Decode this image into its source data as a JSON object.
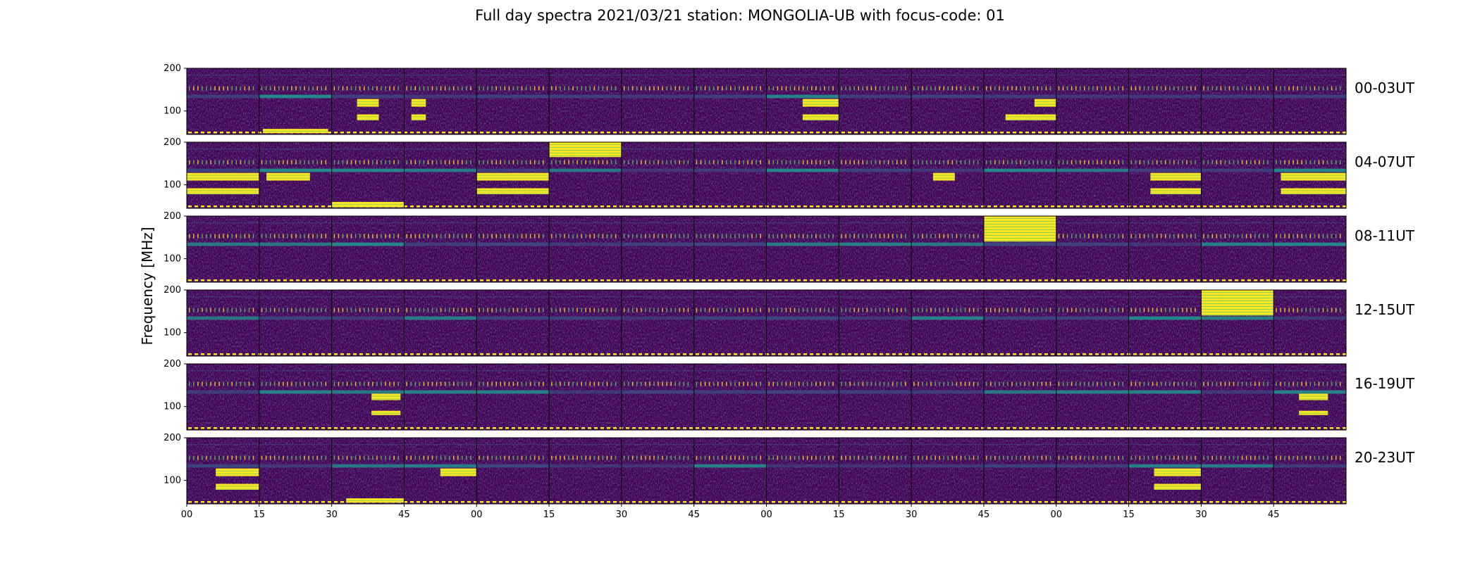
{
  "chart_data": {
    "type": "heatmap",
    "title": "Full day spectra 2021/03/21 station: MONGOLIA-UB with focus-code: 01",
    "ylabel": "Frequency [MHz]",
    "ylim": [
      45,
      200
    ],
    "y_ticks": [
      100,
      200
    ],
    "x_tick_labels": [
      "00",
      "15",
      "30",
      "45",
      "00",
      "15",
      "30",
      "45",
      "00",
      "15",
      "30",
      "45",
      "00",
      "15",
      "30",
      "45"
    ],
    "grid": false,
    "colormap": "viridis",
    "colormap_stops": [
      "#440154",
      "#3b528b",
      "#21918c",
      "#5ec962",
      "#fde725"
    ],
    "panels_per_row": 16,
    "minutes_per_panel": 15,
    "rows": [
      {
        "label": "00-03UT",
        "events": [
          {
            "panel": 2,
            "from": 0.05,
            "to": 0.95,
            "fmin": 48,
            "fmax": 58
          },
          {
            "panel": 3,
            "from": 0.35,
            "to": 0.65,
            "fmin": 110,
            "fmax": 128
          },
          {
            "panel": 3,
            "from": 0.35,
            "to": 0.65,
            "fmin": 78,
            "fmax": 92
          },
          {
            "panel": 4,
            "from": 0.1,
            "to": 0.3,
            "fmin": 110,
            "fmax": 128
          },
          {
            "panel": 4,
            "from": 0.1,
            "to": 0.3,
            "fmin": 78,
            "fmax": 92
          },
          {
            "panel": 9,
            "from": 0.5,
            "to": 1.0,
            "fmin": 110,
            "fmax": 128
          },
          {
            "panel": 9,
            "from": 0.5,
            "to": 1.0,
            "fmin": 78,
            "fmax": 92
          },
          {
            "panel": 12,
            "from": 0.7,
            "to": 1.0,
            "fmin": 110,
            "fmax": 128
          },
          {
            "panel": 12,
            "from": 0.3,
            "to": 1.0,
            "fmin": 78,
            "fmax": 92
          }
        ]
      },
      {
        "label": "04-07UT",
        "events": [
          {
            "panel": 1,
            "from": 0.0,
            "to": 1.0,
            "fmin": 110,
            "fmax": 128
          },
          {
            "panel": 1,
            "from": 0.0,
            "to": 1.0,
            "fmin": 78,
            "fmax": 92
          },
          {
            "panel": 2,
            "from": 0.1,
            "to": 0.7,
            "fmin": 110,
            "fmax": 128
          },
          {
            "panel": 3,
            "from": 0.0,
            "to": 1.0,
            "fmin": 48,
            "fmax": 60
          },
          {
            "panel": 5,
            "from": 0.0,
            "to": 1.0,
            "fmin": 110,
            "fmax": 128
          },
          {
            "panel": 5,
            "from": 0.0,
            "to": 1.0,
            "fmin": 78,
            "fmax": 92
          },
          {
            "panel": 6,
            "from": 0.0,
            "to": 1.0,
            "fmin": 165,
            "fmax": 200
          },
          {
            "panel": 11,
            "from": 0.3,
            "to": 0.6,
            "fmin": 110,
            "fmax": 128
          },
          {
            "panel": 14,
            "from": 0.3,
            "to": 1.0,
            "fmin": 110,
            "fmax": 128
          },
          {
            "panel": 14,
            "from": 0.3,
            "to": 1.0,
            "fmin": 78,
            "fmax": 92
          },
          {
            "panel": 16,
            "from": 0.1,
            "to": 1.0,
            "fmin": 110,
            "fmax": 128
          },
          {
            "panel": 16,
            "from": 0.1,
            "to": 1.0,
            "fmin": 78,
            "fmax": 92
          }
        ]
      },
      {
        "label": "08-11UT",
        "events": [
          {
            "panel": 12,
            "from": 0.0,
            "to": 1.0,
            "fmin": 140,
            "fmax": 200
          }
        ]
      },
      {
        "label": "12-15UT",
        "events": [
          {
            "panel": 15,
            "from": 0.0,
            "to": 1.0,
            "fmin": 140,
            "fmax": 200
          }
        ]
      },
      {
        "label": "16-19UT",
        "events": [
          {
            "panel": 3,
            "from": 0.55,
            "to": 0.95,
            "fmin": 115,
            "fmax": 130
          },
          {
            "panel": 3,
            "from": 0.55,
            "to": 0.95,
            "fmin": 80,
            "fmax": 90
          },
          {
            "panel": 16,
            "from": 0.35,
            "to": 0.75,
            "fmin": 115,
            "fmax": 130
          },
          {
            "panel": 16,
            "from": 0.35,
            "to": 0.75,
            "fmin": 80,
            "fmax": 90
          }
        ]
      },
      {
        "label": "20-23UT",
        "events": [
          {
            "panel": 1,
            "from": 0.4,
            "to": 1.0,
            "fmin": 110,
            "fmax": 128
          },
          {
            "panel": 1,
            "from": 0.4,
            "to": 1.0,
            "fmin": 78,
            "fmax": 92
          },
          {
            "panel": 3,
            "from": 0.2,
            "to": 1.0,
            "fmin": 48,
            "fmax": 58
          },
          {
            "panel": 4,
            "from": 0.5,
            "to": 1.0,
            "fmin": 110,
            "fmax": 128
          },
          {
            "panel": 14,
            "from": 0.35,
            "to": 1.0,
            "fmin": 110,
            "fmax": 128
          },
          {
            "panel": 14,
            "from": 0.35,
            "to": 1.0,
            "fmin": 78,
            "fmax": 92
          }
        ]
      }
    ]
  }
}
